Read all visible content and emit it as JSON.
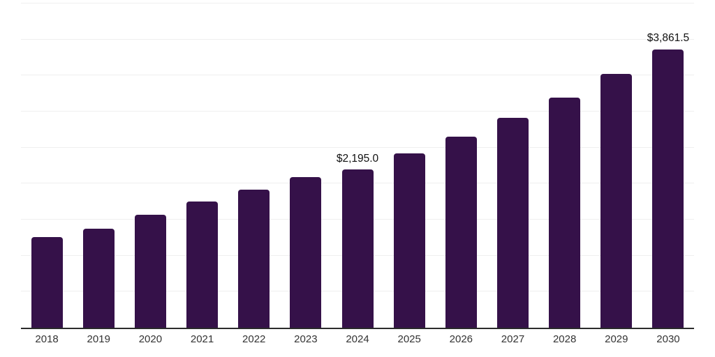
{
  "chart_data": {
    "type": "bar",
    "title": "",
    "xlabel": "",
    "ylabel": "",
    "categories": [
      "2018",
      "2019",
      "2020",
      "2021",
      "2022",
      "2023",
      "2024",
      "2025",
      "2026",
      "2027",
      "2028",
      "2029",
      "2030"
    ],
    "values": [
      1255,
      1375,
      1565,
      1750,
      1920,
      2095,
      2195.0,
      2420,
      2650,
      2910,
      3190,
      3525,
      3861.5
    ],
    "data_labels": {
      "2024": "$2,195.0",
      "2030": "$3,861.5"
    },
    "ylim": [
      0,
      4500
    ],
    "grid_step": 500,
    "grid": "horizontal-only",
    "legend": "none"
  },
  "style": {
    "bar_color": "#351149",
    "grid_color": "#efefef",
    "axis_color": "#2b2b2b",
    "data_label_color": "#111111",
    "tick_label_color": "#333333",
    "background": "#ffffff"
  }
}
